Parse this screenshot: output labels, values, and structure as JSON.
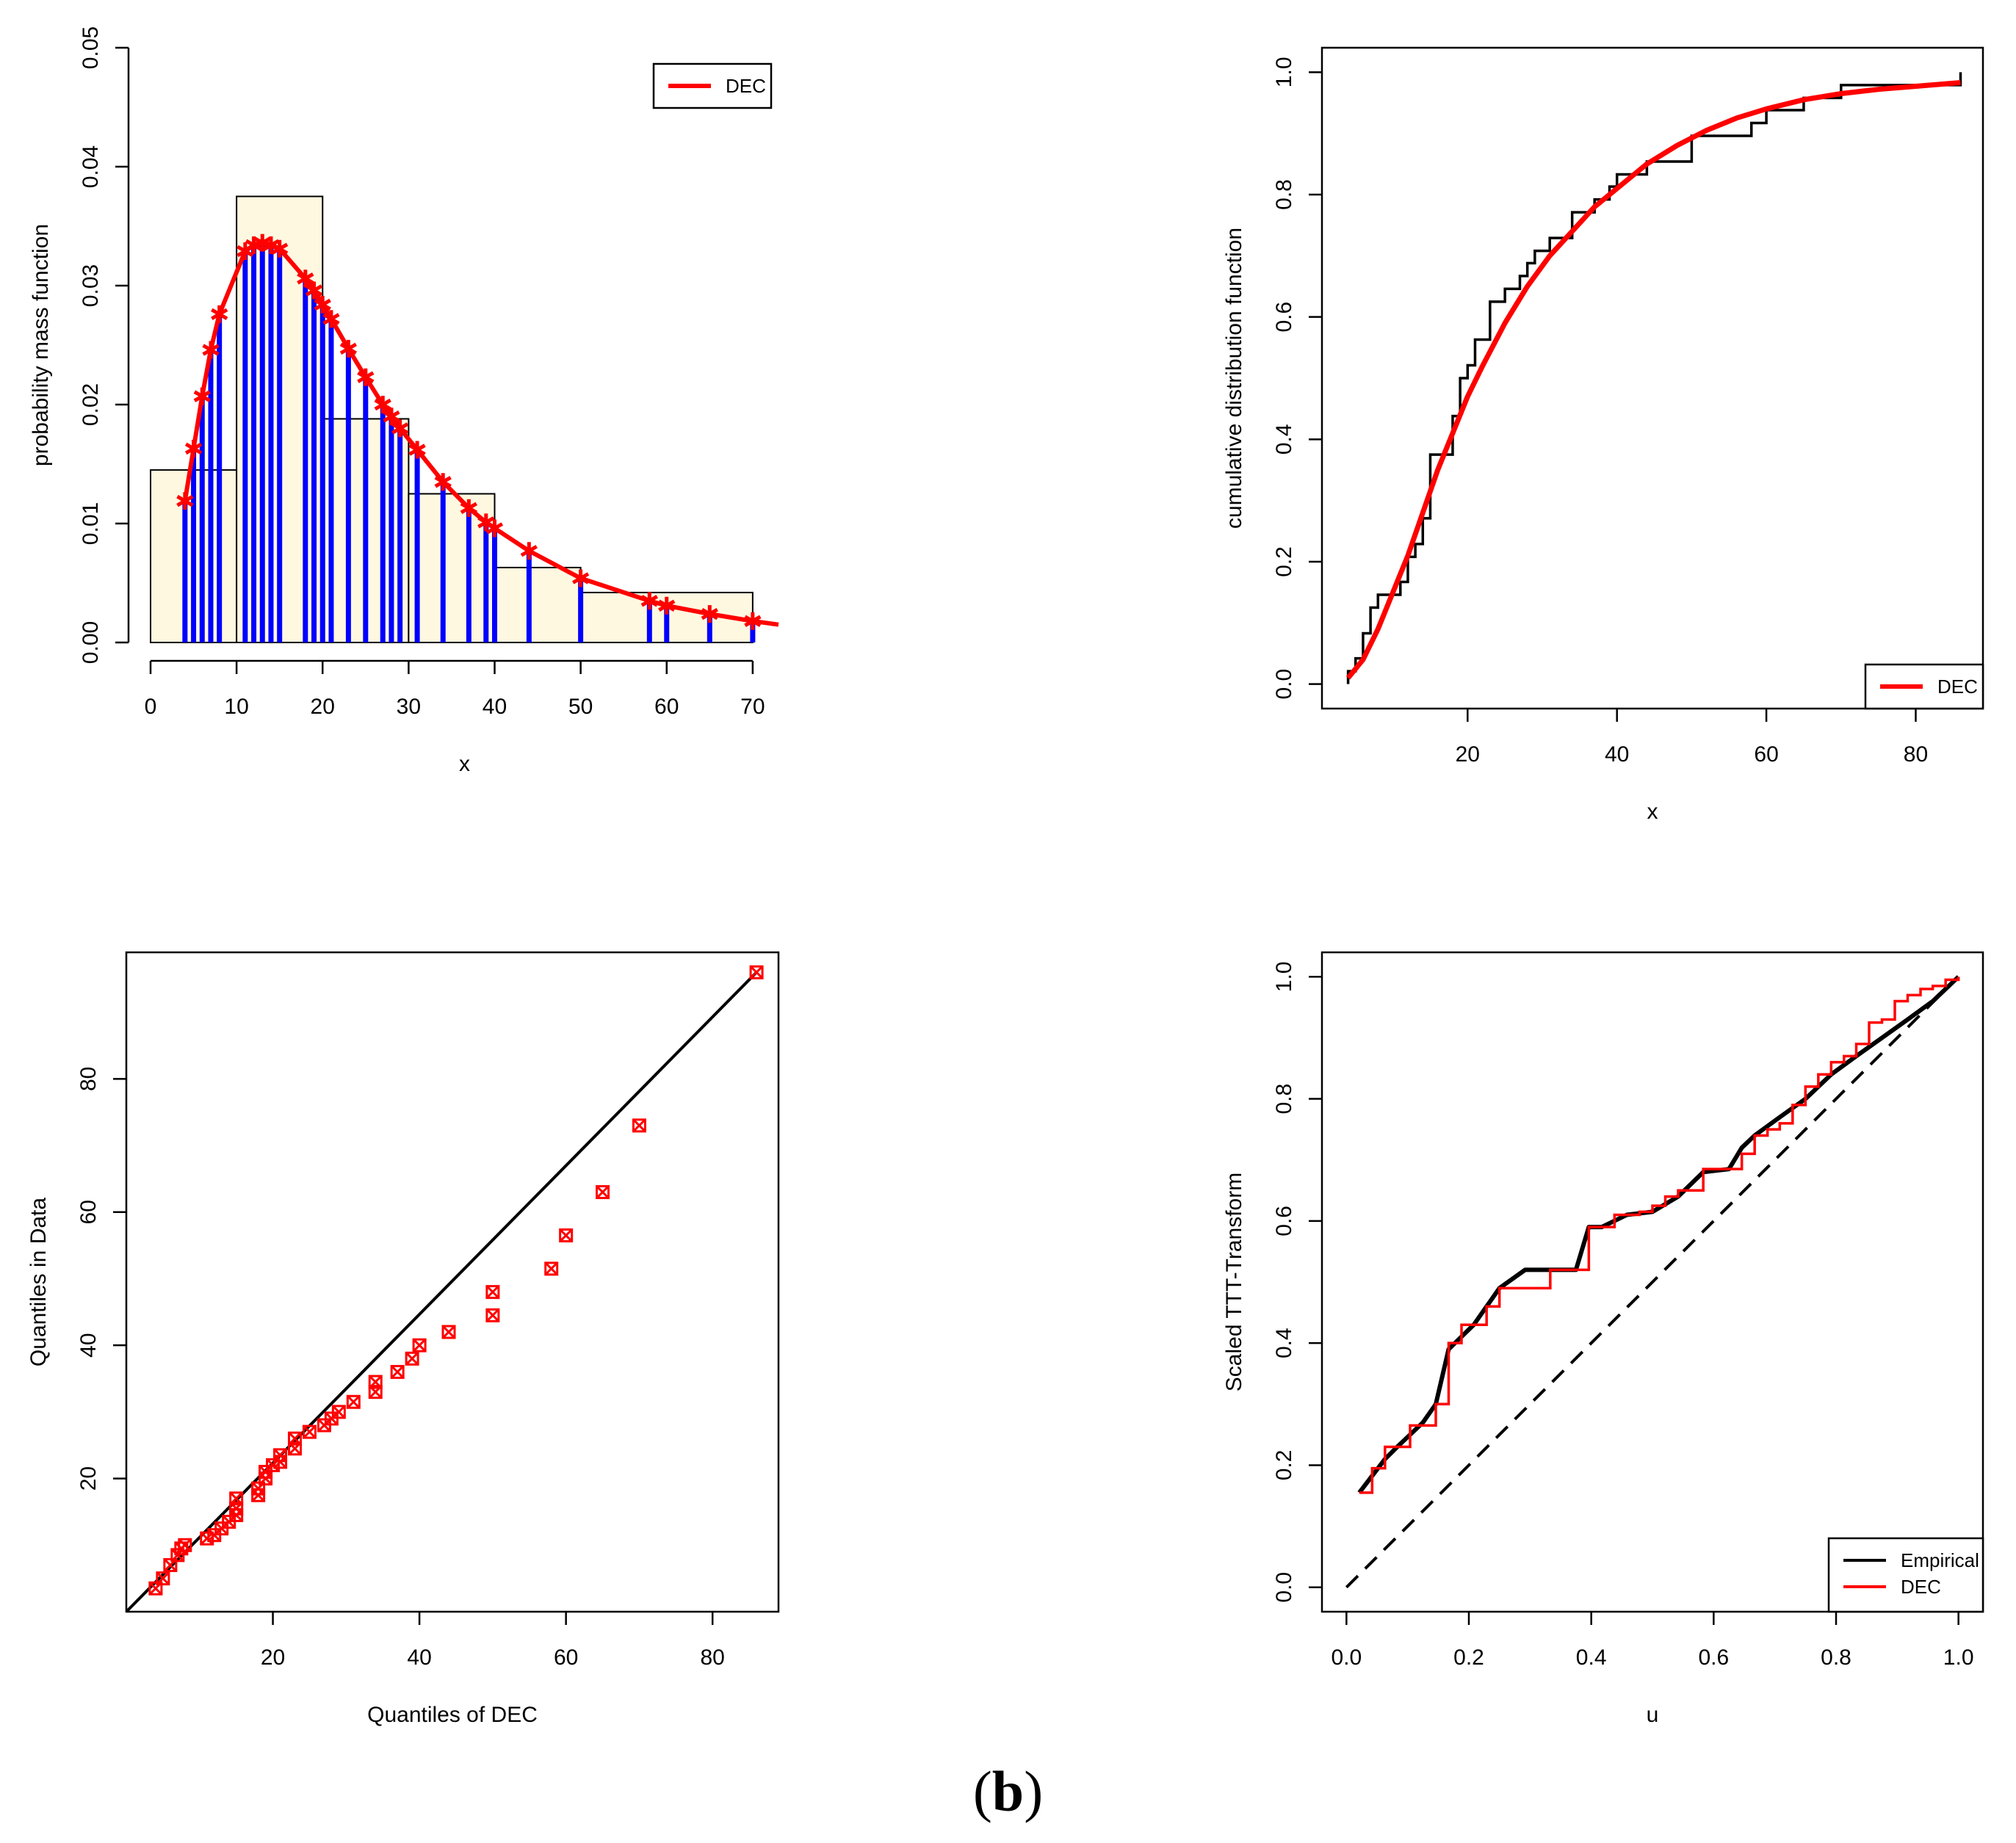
{
  "colors": {
    "fit": "#ff0000",
    "empirical": "#000000",
    "bars": "#0000ff",
    "hist_fill": "#fff8e1",
    "axis": "#000000"
  },
  "caption": {
    "open": "(",
    "letter": "b",
    "close": ")"
  },
  "chart_data": [
    {
      "id": "pmf",
      "type": "bar",
      "title": "",
      "xlabel": "x",
      "ylabel": "probability mass function",
      "xlim": [
        0,
        73
      ],
      "ylim": [
        0,
        0.05
      ],
      "xticks": [
        0,
        10,
        20,
        30,
        40,
        50,
        60,
        70
      ],
      "xtick_labels": [
        "0",
        "10",
        "20",
        "30",
        "40",
        "50",
        "60",
        "70"
      ],
      "yticks": [
        0,
        0.01,
        0.02,
        0.03,
        0.04,
        0.05
      ],
      "ytick_labels": [
        "0.00",
        "0.01",
        "0.02",
        "0.03",
        "0.04",
        "0.05"
      ],
      "legend": {
        "position": "top-right",
        "entries": [
          {
            "label": "DEC",
            "color": "#ff0000"
          }
        ]
      },
      "histogram": [
        {
          "from": 0,
          "to": 10,
          "density": 0.0145
        },
        {
          "from": 10,
          "to": 20,
          "density": 0.0375
        },
        {
          "from": 20,
          "to": 30,
          "density": 0.0188
        },
        {
          "from": 30,
          "to": 40,
          "density": 0.0125
        },
        {
          "from": 40,
          "to": 50,
          "density": 0.0063
        },
        {
          "from": 50,
          "to": 70,
          "density": 0.0042
        }
      ],
      "spikes": {
        "x": [
          4,
          5,
          6,
          7,
          8,
          11,
          12,
          13,
          14,
          15,
          18,
          19,
          20,
          21,
          23,
          25,
          27,
          28,
          29,
          31,
          34,
          37,
          39,
          40,
          44,
          50,
          58,
          60,
          65,
          70
        ],
        "y": [
          0.0119,
          0.0163,
          0.0207,
          0.0246,
          0.0276,
          0.0329,
          0.0334,
          0.0336,
          0.0334,
          0.0331,
          0.0306,
          0.0296,
          0.0284,
          0.0272,
          0.0247,
          0.0223,
          0.02,
          0.019,
          0.018,
          0.0162,
          0.0135,
          0.0113,
          0.0101,
          0.0096,
          0.0077,
          0.0054,
          0.0035,
          0.0031,
          0.0024,
          0.0018
        ]
      },
      "series": [
        {
          "name": "DEC",
          "color": "#ff0000",
          "marker": "asterisk",
          "x": [
            4,
            5,
            6,
            7,
            8,
            11,
            12,
            13,
            14,
            15,
            18,
            19,
            20,
            21,
            23,
            25,
            27,
            28,
            29,
            31,
            34,
            37,
            39,
            40,
            44,
            50,
            58,
            60,
            65,
            70,
            73
          ],
          "y": [
            0.0119,
            0.0163,
            0.0207,
            0.0246,
            0.0276,
            0.0329,
            0.0334,
            0.0336,
            0.0334,
            0.0331,
            0.0306,
            0.0296,
            0.0284,
            0.0272,
            0.0247,
            0.0223,
            0.02,
            0.019,
            0.018,
            0.0162,
            0.0135,
            0.0113,
            0.0101,
            0.0096,
            0.0077,
            0.0054,
            0.0035,
            0.0031,
            0.0024,
            0.0018,
            0.0015
          ]
        }
      ]
    },
    {
      "id": "cdf",
      "type": "line",
      "title": "",
      "xlabel": "x",
      "ylabel": "cumulative distribution function",
      "xlim": [
        0.5,
        89
      ],
      "ylim": [
        -0.04,
        1.04
      ],
      "xticks": [
        20,
        40,
        60,
        80
      ],
      "xtick_labels": [
        "20",
        "40",
        "60",
        "80"
      ],
      "yticks": [
        0,
        0.2,
        0.4,
        0.6,
        0.8,
        1.0
      ],
      "ytick_labels": [
        "0.0",
        "0.2",
        "0.4",
        "0.6",
        "0.8",
        "1.0"
      ],
      "legend": {
        "position": "bottom-right",
        "entries": [
          {
            "label": "DEC",
            "color": "#ff0000"
          }
        ]
      },
      "series": [
        {
          "name": "Empirical",
          "color": "#000000",
          "kind": "step",
          "x": [
            4,
            5,
            6,
            7,
            8,
            11,
            12,
            13,
            14,
            15,
            18,
            19,
            20,
            21,
            23,
            25,
            27,
            28,
            29,
            31,
            34,
            37,
            39,
            40,
            44,
            50,
            58,
            60,
            65,
            70,
            86
          ],
          "y": [
            0.021,
            0.042,
            0.083,
            0.125,
            0.146,
            0.167,
            0.208,
            0.229,
            0.271,
            0.375,
            0.438,
            0.5,
            0.521,
            0.563,
            0.625,
            0.646,
            0.667,
            0.688,
            0.708,
            0.729,
            0.771,
            0.792,
            0.813,
            0.833,
            0.854,
            0.896,
            0.917,
            0.938,
            0.958,
            0.979,
            1.0
          ]
        },
        {
          "name": "DEC",
          "color": "#ff0000",
          "kind": "line",
          "x": [
            4,
            6,
            8,
            10,
            12,
            14,
            16,
            18,
            20,
            22,
            25,
            28,
            31,
            34,
            37,
            40,
            44,
            48,
            52,
            56,
            60,
            65,
            70,
            75,
            80,
            86
          ],
          "y": [
            0.01,
            0.04,
            0.09,
            0.15,
            0.21,
            0.28,
            0.35,
            0.41,
            0.47,
            0.52,
            0.59,
            0.65,
            0.7,
            0.74,
            0.78,
            0.81,
            0.85,
            0.88,
            0.905,
            0.925,
            0.94,
            0.955,
            0.965,
            0.972,
            0.977,
            0.983
          ]
        }
      ]
    },
    {
      "id": "qq",
      "type": "scatter",
      "title": "",
      "xlabel": "Quantiles of DEC",
      "ylabel": "Quantiles in Data",
      "xlim": [
        0,
        89
      ],
      "ylim": [
        0,
        99
      ],
      "xticks": [
        20,
        40,
        60,
        80
      ],
      "xtick_labels": [
        "20",
        "40",
        "60",
        "80"
      ],
      "yticks": [
        20,
        40,
        60,
        80
      ],
      "ytick_labels": [
        "20",
        "40",
        "60",
        "80"
      ],
      "reference_line": {
        "from": [
          0,
          0
        ],
        "to": [
          86,
          96
        ]
      },
      "series": [
        {
          "name": "DEC",
          "color": "#ff0000",
          "marker": "boxed-x",
          "x": [
            4,
            5,
            6,
            7,
            7.5,
            8,
            11,
            12,
            13,
            14,
            15,
            15,
            15,
            18,
            18,
            19,
            19,
            20,
            21,
            21,
            23,
            23,
            25,
            27,
            28,
            29,
            31,
            34,
            34,
            37,
            39,
            40,
            44,
            50,
            50,
            58,
            60,
            65,
            70,
            86
          ],
          "y": [
            3.5,
            5,
            7,
            8.5,
            9.5,
            10,
            11,
            11.5,
            12.5,
            13.5,
            14.5,
            15.5,
            17,
            17.5,
            18.5,
            20,
            21,
            22,
            22.5,
            23.5,
            24.5,
            26,
            27,
            28,
            29,
            30,
            31.5,
            33,
            34.5,
            36,
            38,
            40,
            42,
            44.5,
            48,
            51.5,
            56.5,
            63,
            73,
            96
          ]
        }
      ]
    },
    {
      "id": "ttt",
      "type": "line",
      "title": "",
      "xlabel": "u",
      "ylabel": "Scaled TTT-Transform",
      "xlim": [
        -0.04,
        1.04
      ],
      "ylim": [
        -0.04,
        1.04
      ],
      "xticks": [
        0,
        0.2,
        0.4,
        0.6,
        0.8,
        1.0
      ],
      "xtick_labels": [
        "0.0",
        "0.2",
        "0.4",
        "0.6",
        "0.8",
        "1.0"
      ],
      "yticks": [
        0,
        0.2,
        0.4,
        0.6,
        0.8,
        1.0
      ],
      "ytick_labels": [
        "0.0",
        "0.2",
        "0.4",
        "0.6",
        "0.8",
        "1.0"
      ],
      "legend": {
        "position": "bottom-right",
        "entries": [
          {
            "label": "Empirical",
            "color": "#000000"
          },
          {
            "label": "DEC",
            "color": "#ff0000"
          }
        ]
      },
      "reference_line": {
        "from": [
          0,
          0
        ],
        "to": [
          1,
          1
        ],
        "style": "dashed"
      },
      "series": [
        {
          "name": "Empirical",
          "color": "#000000",
          "kind": "line",
          "x": [
            0.021,
            0.063,
            0.083,
            0.104,
            0.125,
            0.146,
            0.167,
            0.208,
            0.25,
            0.292,
            0.333,
            0.375,
            0.396,
            0.417,
            0.458,
            0.5,
            0.542,
            0.583,
            0.625,
            0.646,
            0.667,
            0.708,
            0.75,
            0.792,
            0.833,
            0.875,
            0.917,
            0.958,
            1.0
          ],
          "y": [
            0.155,
            0.21,
            0.23,
            0.25,
            0.27,
            0.3,
            0.39,
            0.43,
            0.49,
            0.52,
            0.52,
            0.52,
            0.59,
            0.59,
            0.61,
            0.615,
            0.64,
            0.68,
            0.685,
            0.72,
            0.74,
            0.77,
            0.8,
            0.84,
            0.87,
            0.9,
            0.93,
            0.96,
            1.0
          ]
        },
        {
          "name": "DEC",
          "color": "#ff0000",
          "kind": "step",
          "x": [
            0.021,
            0.042,
            0.063,
            0.104,
            0.125,
            0.146,
            0.167,
            0.188,
            0.208,
            0.229,
            0.25,
            0.333,
            0.396,
            0.438,
            0.479,
            0.5,
            0.521,
            0.542,
            0.583,
            0.625,
            0.646,
            0.667,
            0.688,
            0.708,
            0.729,
            0.75,
            0.771,
            0.792,
            0.813,
            0.833,
            0.854,
            0.875,
            0.896,
            0.917,
            0.938,
            0.958,
            0.979,
            1.0
          ],
          "y": [
            0.155,
            0.195,
            0.23,
            0.265,
            0.265,
            0.3,
            0.4,
            0.43,
            0.43,
            0.46,
            0.49,
            0.52,
            0.59,
            0.61,
            0.615,
            0.625,
            0.64,
            0.65,
            0.685,
            0.685,
            0.71,
            0.74,
            0.75,
            0.76,
            0.79,
            0.82,
            0.84,
            0.86,
            0.87,
            0.89,
            0.925,
            0.93,
            0.96,
            0.97,
            0.98,
            0.985,
            0.995,
            1.0
          ]
        }
      ]
    }
  ]
}
